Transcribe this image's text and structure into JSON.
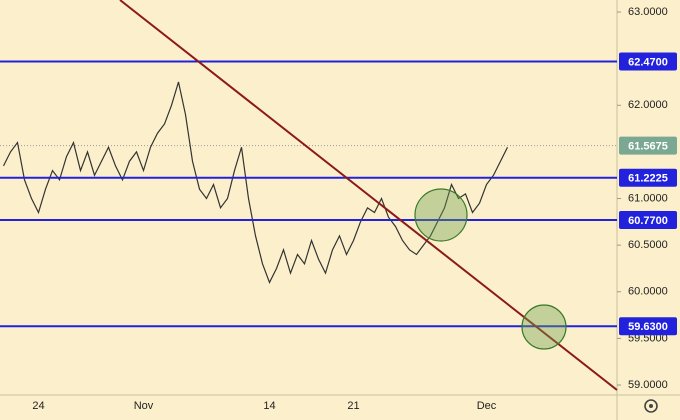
{
  "chart_data": {
    "type": "line",
    "categories": [
      null,
      null,
      null,
      null,
      null,
      "24",
      null,
      null,
      null,
      null,
      null,
      null,
      null,
      null,
      null,
      null,
      null,
      null,
      null,
      null,
      "Nov",
      null,
      null,
      null,
      null,
      null,
      null,
      null,
      null,
      null,
      null,
      null,
      null,
      null,
      null,
      null,
      null,
      null,
      "14",
      null,
      null,
      null,
      null,
      null,
      null,
      null,
      null,
      null,
      null,
      null,
      "21",
      null,
      null,
      null,
      null,
      null,
      null,
      null,
      null,
      null,
      null,
      null,
      null,
      null,
      null,
      null,
      null,
      null,
      null,
      "Dec",
      null,
      null,
      null
    ],
    "series": [
      {
        "color": "#333333",
        "values": [
          61.35,
          61.5,
          61.6,
          61.2,
          61.0,
          60.85,
          61.1,
          61.3,
          61.2,
          61.45,
          61.6,
          61.3,
          61.5,
          61.25,
          61.4,
          61.55,
          61.35,
          61.2,
          61.4,
          61.5,
          61.3,
          61.55,
          61.7,
          61.8,
          62.0,
          62.25,
          61.9,
          61.4,
          61.1,
          61.0,
          61.15,
          60.9,
          61.0,
          61.3,
          61.55,
          61.0,
          60.6,
          60.3,
          60.1,
          60.25,
          60.45,
          60.2,
          60.4,
          60.3,
          60.55,
          60.35,
          60.2,
          60.45,
          60.6,
          60.4,
          60.55,
          60.75,
          60.9,
          60.85,
          61.0,
          60.8,
          60.7,
          60.55,
          60.45,
          60.4,
          60.5,
          60.6,
          60.75,
          60.9,
          61.15,
          61.0,
          61.05,
          60.85,
          60.95,
          61.15,
          61.25,
          61.4,
          61.55
        ]
      }
    ],
    "ylim": [
      58.893,
      63.129
    ],
    "yticks": [
      {
        "value": 63,
        "label": "63.0000"
      },
      {
        "value": 62,
        "label": "62.0000"
      },
      {
        "value": 61,
        "label": "61.0000"
      },
      {
        "value": 60.5,
        "label": "60.5000"
      },
      {
        "value": 60,
        "label": "60.0000"
      },
      {
        "value": 59.5,
        "label": "59.5000"
      },
      {
        "value": 59,
        "label": "59.0000"
      }
    ],
    "levels": [
      {
        "value": 62.47,
        "label": "62.4700"
      },
      {
        "value": 61.2225,
        "label": "61.2225"
      },
      {
        "value": 60.77,
        "label": "60.7700"
      },
      {
        "value": 59.63,
        "label": "59.6300"
      }
    ],
    "level_color": "#2222dd",
    "last_price": {
      "value": 61.5675,
      "label": "61.5675"
    },
    "last_price_color": "#7aa893"
  }
}
